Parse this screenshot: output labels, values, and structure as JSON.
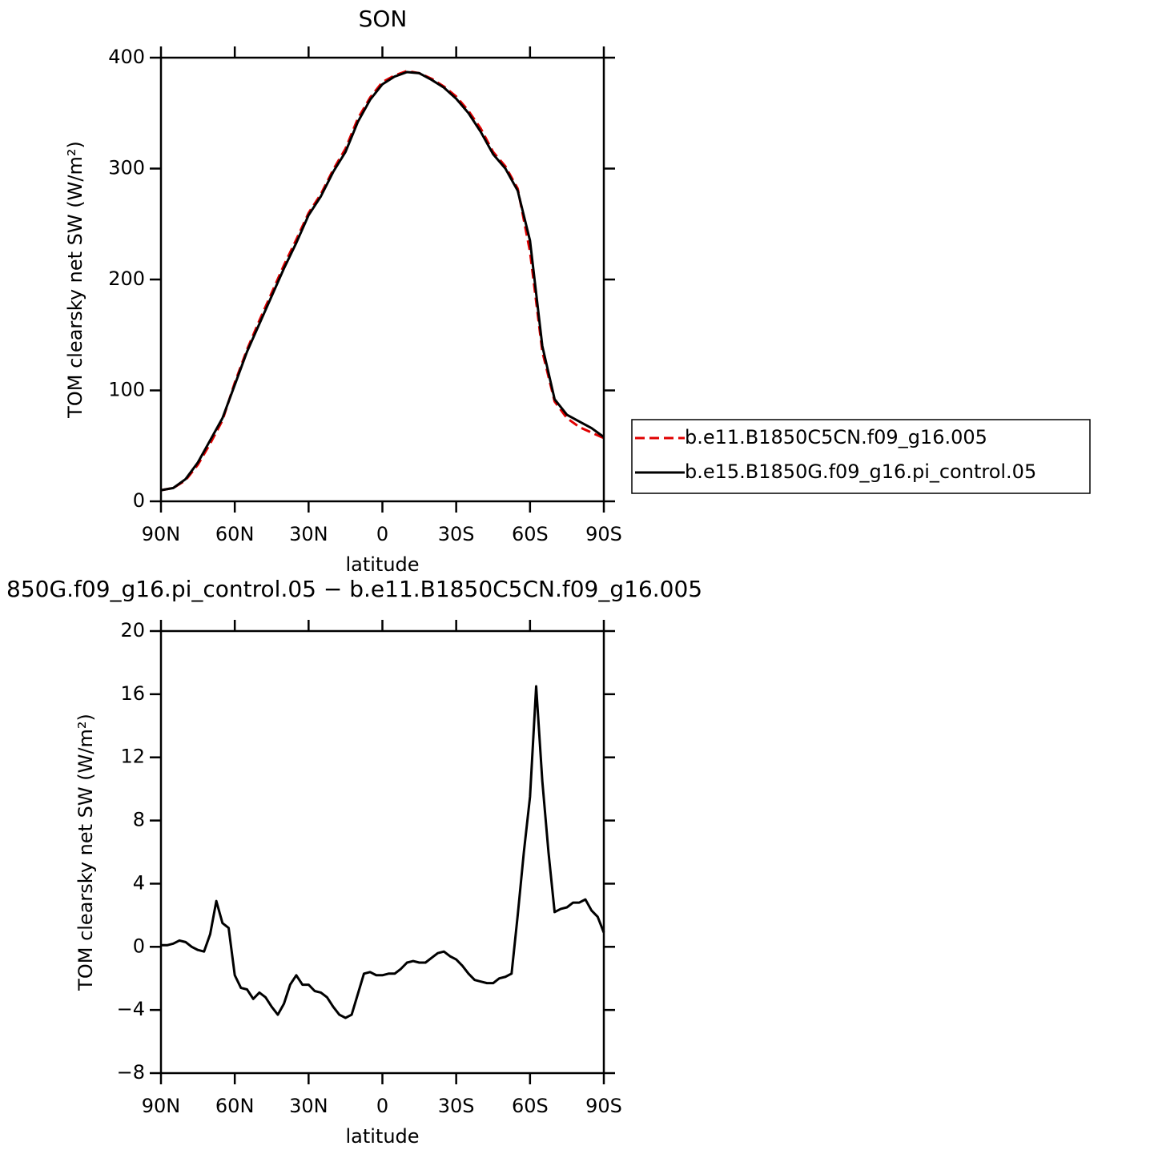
{
  "chart_data": [
    {
      "type": "line",
      "title": "SON",
      "xlabel": "latitude",
      "ylabel": "TOM clearsky net SW (W/m²)",
      "x": [
        90,
        85,
        80,
        75,
        70,
        65,
        60,
        55,
        50,
        45,
        40,
        35,
        30,
        25,
        20,
        15,
        10,
        5,
        0,
        -5,
        -10,
        -15,
        -20,
        -25,
        -30,
        -35,
        -40,
        -45,
        -50,
        -55,
        -60,
        -65,
        -70,
        -75,
        -80,
        -85,
        -90
      ],
      "series": [
        {
          "name": "b.e11.B1850C5CN.f09_g16.005",
          "color": "#e00000",
          "style": "dashed",
          "values": [
            10,
            12,
            19,
            33,
            52,
            73,
            107,
            137,
            163,
            188,
            213,
            236,
            260,
            277,
            299,
            318,
            345,
            364,
            378,
            384,
            388,
            386,
            381,
            374,
            365,
            352,
            336,
            315,
            302,
            282,
            225,
            135,
            90,
            75,
            67,
            62,
            57
          ]
        },
        {
          "name": "b.e15.B1850G.f09_g16.pi_control.05",
          "color": "#000000",
          "style": "solid",
          "values": [
            10,
            12,
            20,
            35,
            55,
            75,
            105,
            135,
            160,
            185,
            210,
            233,
            258,
            275,
            297,
            315,
            342,
            362,
            376,
            383,
            387,
            386,
            380,
            373,
            363,
            350,
            333,
            313,
            300,
            280,
            235,
            140,
            92,
            78,
            72,
            66,
            58
          ]
        }
      ],
      "xlim": [
        90,
        -90
      ],
      "xticks": [
        {
          "value": 90,
          "label": "90N"
        },
        {
          "value": 60,
          "label": "60N"
        },
        {
          "value": 30,
          "label": "30N"
        },
        0,
        {
          "value": -30,
          "label": "30S"
        },
        {
          "value": -60,
          "label": "60S"
        },
        {
          "value": -90,
          "label": "90S"
        }
      ],
      "ylim": [
        0,
        400
      ],
      "yticks": [
        0,
        100,
        200,
        300,
        400
      ]
    },
    {
      "type": "line",
      "title": "850G.f09_g16.pi_control.05 − b.e11.B1850C5CN.f09_g16.005",
      "xlabel": "latitude",
      "ylabel": "TOM clearsky net SW (W/m²)",
      "x": [
        90,
        87.5,
        85,
        82.5,
        80,
        77.5,
        75,
        72.5,
        70,
        67.5,
        65,
        62.5,
        60,
        57.5,
        55,
        52.5,
        50,
        47.5,
        45,
        42.5,
        40,
        37.5,
        35,
        32.5,
        30,
        27.5,
        25,
        22.5,
        20,
        17.5,
        15,
        12.5,
        10,
        7.5,
        5,
        2.5,
        0,
        -2.5,
        -5,
        -7.5,
        -10,
        -12.5,
        -15,
        -17.5,
        -20,
        -22.5,
        -25,
        -27.5,
        -30,
        -32.5,
        -35,
        -37.5,
        -40,
        -42.5,
        -45,
        -47.5,
        -50,
        -52.5,
        -55,
        -57.5,
        -60,
        -62.5,
        -65,
        -67.5,
        -70,
        -72.5,
        -75,
        -77.5,
        -80,
        -82.5,
        -85,
        -87.5,
        -90
      ],
      "values": [
        0.1,
        0.1,
        0.2,
        0.4,
        0.3,
        0,
        -0.2,
        -0.3,
        0.8,
        2.9,
        1.5,
        1.2,
        -1.8,
        -2.6,
        -2.7,
        -3.3,
        -2.9,
        -3.2,
        -3.8,
        -4.3,
        -3.6,
        -2.4,
        -1.8,
        -2.4,
        -2.4,
        -2.8,
        -2.9,
        -3.2,
        -3.8,
        -4.3,
        -4.5,
        -4.3,
        -3.0,
        -1.7,
        -1.6,
        -1.8,
        -1.8,
        -1.7,
        -1.7,
        -1.4,
        -1.0,
        -0.9,
        -1.0,
        -1.0,
        -0.7,
        -0.4,
        -0.3,
        -0.6,
        -0.8,
        -1.2,
        -1.7,
        -2.1,
        -2.2,
        -2.3,
        -2.3,
        -2.0,
        -1.9,
        -1.7,
        2.0,
        6.0,
        9.5,
        16.5,
        10.5,
        6.0,
        2.2,
        2.4,
        2.5,
        2.8,
        2.8,
        3.0,
        2.3,
        1.9,
        0.9
      ],
      "color": "#000000",
      "xlim": [
        90,
        -90
      ],
      "xticks": [
        {
          "value": 90,
          "label": "90N"
        },
        {
          "value": 60,
          "label": "60N"
        },
        {
          "value": 30,
          "label": "30N"
        },
        0,
        {
          "value": -30,
          "label": "30S"
        },
        {
          "value": -60,
          "label": "60S"
        },
        {
          "value": -90,
          "label": "90S"
        }
      ],
      "ylim": [
        -8,
        20
      ],
      "yticks": [
        {
          "value": -8,
          "label": "−8"
        },
        {
          "value": -4,
          "label": "−4"
        },
        0,
        4,
        8,
        12,
        16,
        20
      ]
    }
  ]
}
